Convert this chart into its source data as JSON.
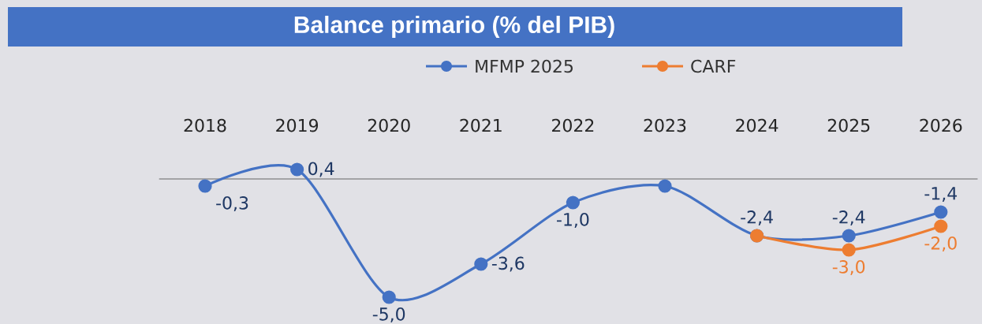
{
  "chart_data": {
    "type": "line",
    "title": "Balance primario (% del PIB)",
    "categories": [
      "2018",
      "2019",
      "2020",
      "2021",
      "2022",
      "2023",
      "2024",
      "2025",
      "2026"
    ],
    "series": [
      {
        "name": "MFMP 2025",
        "color": "#4472c4",
        "values": [
          -0.3,
          0.4,
          -5.0,
          -3.6,
          -1.0,
          -0.3,
          -2.4,
          -2.4,
          -1.4
        ],
        "value_labels": [
          "-0,3",
          "0,4",
          "-5,0",
          "-3,6",
          "-1,0",
          null,
          "-2,4",
          "-2,4",
          "-1,4"
        ]
      },
      {
        "name": "CARF",
        "color": "#ed7d31",
        "values": [
          null,
          null,
          null,
          null,
          null,
          null,
          -2.4,
          -3.0,
          -2.0
        ],
        "value_labels": [
          null,
          null,
          null,
          null,
          null,
          null,
          null,
          "-3,0",
          "-2,0"
        ]
      }
    ],
    "legend": "top",
    "marker": "circle",
    "line_style": "solid",
    "grid": false
  }
}
